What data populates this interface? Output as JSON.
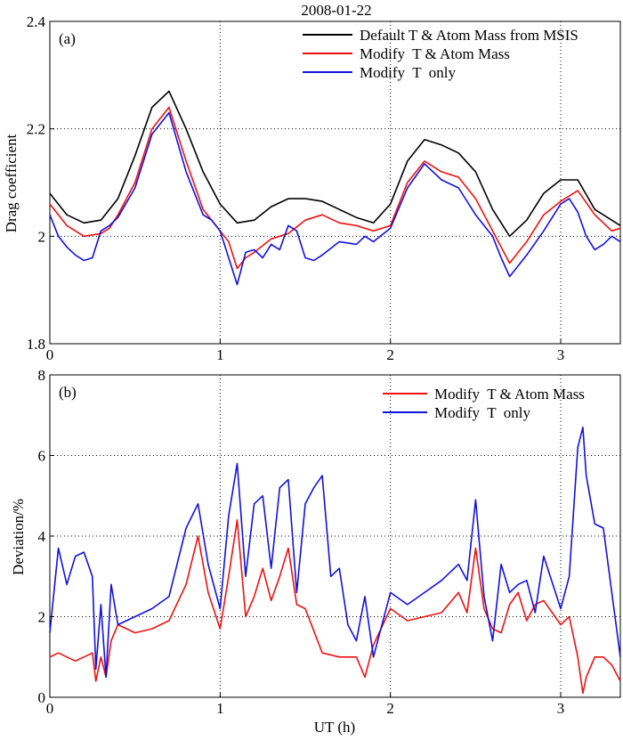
{
  "figure_title": "2008-01-22",
  "chart_data": [
    {
      "type": "line",
      "panel_label": "(a)",
      "title": "2008-01-22",
      "xlabel": "",
      "ylabel": "Drag coefficient",
      "xlim": [
        0,
        3.35
      ],
      "ylim": [
        1.8,
        2.4
      ],
      "xticks": [
        0,
        1,
        2,
        3
      ],
      "xtick_labels": [
        "0",
        "1",
        "2",
        "3"
      ],
      "yticks": [
        1.8,
        2.0,
        2.2,
        2.4
      ],
      "ytick_labels": [
        "1.8",
        "2",
        "2.2",
        "2.4"
      ],
      "grid": "dotted",
      "legend": "top-right",
      "series": [
        {
          "name": "Default T & Atom Mass from MSIS",
          "color": "#000000",
          "x": [
            0,
            0.1,
            0.2,
            0.3,
            0.4,
            0.5,
            0.6,
            0.7,
            0.8,
            0.9,
            1.0,
            1.1,
            1.2,
            1.3,
            1.4,
            1.5,
            1.6,
            1.7,
            1.8,
            1.9,
            2.0,
            2.1,
            2.2,
            2.3,
            2.4,
            2.5,
            2.6,
            2.7,
            2.8,
            2.9,
            3.0,
            3.1,
            3.2,
            3.35
          ],
          "y": [
            2.08,
            2.04,
            2.025,
            2.03,
            2.07,
            2.15,
            2.24,
            2.27,
            2.2,
            2.12,
            2.06,
            2.025,
            2.03,
            2.055,
            2.07,
            2.07,
            2.065,
            2.05,
            2.035,
            2.025,
            2.06,
            2.14,
            2.18,
            2.17,
            2.155,
            2.12,
            2.05,
            2.0,
            2.03,
            2.08,
            2.105,
            2.105,
            2.05,
            2.02
          ]
        },
        {
          "name": "Modify  T & Atom Mass",
          "color": "#ee1111",
          "x": [
            0,
            0.1,
            0.2,
            0.3,
            0.35,
            0.4,
            0.5,
            0.6,
            0.7,
            0.8,
            0.9,
            1.0,
            1.05,
            1.1,
            1.15,
            1.2,
            1.3,
            1.4,
            1.5,
            1.6,
            1.7,
            1.8,
            1.9,
            2.0,
            2.1,
            2.2,
            2.3,
            2.4,
            2.5,
            2.6,
            2.7,
            2.8,
            2.9,
            3.0,
            3.1,
            3.2,
            3.3,
            3.35
          ],
          "y": [
            2.06,
            2.02,
            2.0,
            2.005,
            2.015,
            2.04,
            2.1,
            2.2,
            2.24,
            2.14,
            2.05,
            2.01,
            1.99,
            1.94,
            1.96,
            1.97,
            1.995,
            2.005,
            2.03,
            2.04,
            2.025,
            2.02,
            2.01,
            2.02,
            2.1,
            2.14,
            2.12,
            2.11,
            2.07,
            2.01,
            1.95,
            1.99,
            2.04,
            2.065,
            2.085,
            2.04,
            2.01,
            2.015
          ]
        },
        {
          "name": "Modify  T  only",
          "color": "#1111dd",
          "x": [
            0,
            0.05,
            0.1,
            0.15,
            0.2,
            0.25,
            0.3,
            0.35,
            0.4,
            0.5,
            0.6,
            0.7,
            0.8,
            0.9,
            0.95,
            1.0,
            1.05,
            1.1,
            1.15,
            1.2,
            1.25,
            1.3,
            1.35,
            1.4,
            1.45,
            1.5,
            1.55,
            1.6,
            1.7,
            1.8,
            1.85,
            1.9,
            2.0,
            2.1,
            2.2,
            2.3,
            2.4,
            2.5,
            2.55,
            2.6,
            2.65,
            2.7,
            2.75,
            2.8,
            2.9,
            3.0,
            3.05,
            3.1,
            3.15,
            3.2,
            3.25,
            3.3,
            3.35
          ],
          "y": [
            2.04,
            2.0,
            1.98,
            1.965,
            1.955,
            1.96,
            2.01,
            2.02,
            2.035,
            2.09,
            2.19,
            2.23,
            2.12,
            2.04,
            2.03,
            2.01,
            1.96,
            1.91,
            1.97,
            1.975,
            1.96,
            1.985,
            1.975,
            2.02,
            2.01,
            1.96,
            1.955,
            1.965,
            1.99,
            1.985,
            2.0,
            1.99,
            2.015,
            2.09,
            2.135,
            2.105,
            2.09,
            2.04,
            2.02,
            2.0,
            1.96,
            1.925,
            1.945,
            1.965,
            2.01,
            2.06,
            2.07,
            2.045,
            2.0,
            1.975,
            1.985,
            2.0,
            1.99
          ]
        }
      ]
    },
    {
      "type": "line",
      "panel_label": "(b)",
      "title": "",
      "xlabel": "UT (h)",
      "ylabel": "Deviation/%",
      "xlim": [
        0,
        3.35
      ],
      "ylim": [
        0,
        8
      ],
      "xticks": [
        0,
        1,
        2,
        3
      ],
      "xtick_labels": [
        "0",
        "1",
        "2",
        "3"
      ],
      "yticks": [
        0,
        2,
        4,
        6,
        8
      ],
      "ytick_labels": [
        "0",
        "2",
        "4",
        "6",
        "8"
      ],
      "grid": "dotted",
      "legend": "top-right",
      "series": [
        {
          "name": "Modify  T & Atom Mass",
          "color": "#ee1111",
          "x": [
            0,
            0.05,
            0.1,
            0.15,
            0.2,
            0.25,
            0.27,
            0.3,
            0.33,
            0.36,
            0.4,
            0.5,
            0.6,
            0.7,
            0.8,
            0.87,
            0.93,
            1.0,
            1.05,
            1.1,
            1.15,
            1.2,
            1.25,
            1.3,
            1.35,
            1.4,
            1.45,
            1.5,
            1.6,
            1.7,
            1.8,
            1.85,
            1.9,
            2.0,
            2.1,
            2.2,
            2.3,
            2.4,
            2.45,
            2.5,
            2.55,
            2.6,
            2.65,
            2.7,
            2.75,
            2.8,
            2.85,
            2.9,
            3.0,
            3.05,
            3.1,
            3.13,
            3.15,
            3.2,
            3.25,
            3.3,
            3.35
          ],
          "y": [
            1.0,
            1.1,
            1.0,
            0.9,
            1.0,
            1.1,
            0.4,
            1.0,
            0.5,
            1.4,
            1.8,
            1.6,
            1.7,
            1.9,
            2.8,
            4.0,
            2.6,
            1.7,
            3.0,
            4.4,
            2.0,
            2.5,
            3.2,
            2.4,
            3.0,
            3.7,
            2.3,
            2.2,
            1.1,
            1.0,
            1.0,
            0.5,
            1.3,
            2.2,
            1.9,
            2.0,
            2.1,
            2.6,
            2.1,
            3.7,
            2.2,
            1.7,
            1.6,
            2.3,
            2.6,
            1.9,
            2.3,
            2.4,
            1.8,
            2.0,
            1.0,
            0.1,
            0.5,
            1.0,
            1.0,
            0.8,
            0.4
          ]
        },
        {
          "name": "Modify  T  only",
          "color": "#1111dd",
          "x": [
            0,
            0.05,
            0.1,
            0.15,
            0.2,
            0.25,
            0.27,
            0.3,
            0.33,
            0.36,
            0.4,
            0.5,
            0.6,
            0.7,
            0.8,
            0.87,
            0.93,
            1.0,
            1.05,
            1.1,
            1.15,
            1.2,
            1.25,
            1.3,
            1.35,
            1.4,
            1.45,
            1.5,
            1.55,
            1.6,
            1.65,
            1.7,
            1.75,
            1.8,
            1.85,
            1.9,
            2.0,
            2.1,
            2.2,
            2.3,
            2.4,
            2.45,
            2.5,
            2.55,
            2.6,
            2.65,
            2.7,
            2.75,
            2.8,
            2.85,
            2.9,
            3.0,
            3.05,
            3.1,
            3.13,
            3.15,
            3.2,
            3.25,
            3.3,
            3.35
          ],
          "y": [
            1.6,
            3.7,
            2.8,
            3.5,
            3.6,
            3.0,
            0.7,
            2.3,
            0.5,
            2.8,
            1.8,
            2.0,
            2.2,
            2.5,
            4.2,
            4.8,
            3.3,
            2.2,
            4.5,
            5.8,
            3.0,
            4.8,
            5.0,
            3.2,
            5.2,
            5.4,
            2.6,
            4.8,
            5.2,
            5.5,
            3.0,
            3.2,
            1.8,
            1.4,
            2.5,
            1.0,
            2.6,
            2.3,
            2.6,
            2.9,
            3.3,
            2.9,
            4.9,
            2.5,
            1.4,
            3.3,
            2.6,
            2.8,
            2.9,
            2.1,
            3.5,
            2.2,
            3.0,
            6.2,
            6.7,
            5.5,
            4.3,
            4.2,
            2.6,
            1.0
          ]
        }
      ]
    }
  ]
}
